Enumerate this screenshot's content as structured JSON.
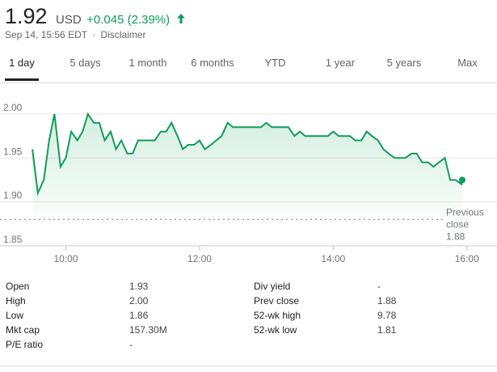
{
  "quote": {
    "price": "1.92",
    "currency": "USD",
    "change": "+0.045 (2.39%)",
    "change_color": "#0f9d58",
    "direction_icon": "up-arrow-icon",
    "timestamp": "Sep 14, 15:56 EDT",
    "separator": "·",
    "disclaimer": "Disclaimer"
  },
  "tabs": [
    {
      "label": "1 day",
      "active": true
    },
    {
      "label": "5 days"
    },
    {
      "label": "1 month"
    },
    {
      "label": "6 months"
    },
    {
      "label": "YTD"
    },
    {
      "label": "1 year"
    },
    {
      "label": "5 years"
    },
    {
      "label": "Max"
    }
  ],
  "chart_data": {
    "type": "area",
    "line_color": "#0f9d58",
    "fill_color": "#e6f4ea",
    "ylim": [
      1.85,
      2.0
    ],
    "y_ticks": [
      "2.00",
      "1.95",
      "1.90",
      "1.85"
    ],
    "x_ticks": [
      "10:00",
      "12:00",
      "14:00",
      "16:00"
    ],
    "grid": true,
    "previous_close": {
      "value": 1.88,
      "label": "Previous close",
      "value_label": "1.88"
    },
    "series": [
      {
        "x": [
          9.5,
          9.58,
          9.67,
          9.75,
          9.83,
          9.92,
          10.0,
          10.08,
          10.17,
          10.25,
          10.33,
          10.42,
          10.5,
          10.58,
          10.67,
          10.75,
          10.83,
          10.92,
          11.0,
          11.08,
          11.17,
          11.25,
          11.33,
          11.42,
          11.5,
          11.58,
          11.67,
          11.75,
          11.83,
          11.92,
          12.0,
          12.08,
          12.17,
          12.25,
          12.33,
          12.42,
          12.5,
          12.58,
          12.67,
          12.75,
          12.83,
          12.92,
          13.0,
          13.08,
          13.17,
          13.25,
          13.33,
          13.42,
          13.5,
          13.58,
          13.67,
          13.75,
          13.83,
          13.92,
          14.0,
          14.08,
          14.17,
          14.25,
          14.33,
          14.42,
          14.5,
          14.58,
          14.67,
          14.75,
          14.83,
          14.92,
          15.0,
          15.08,
          15.17,
          15.25,
          15.33,
          15.42,
          15.5,
          15.58,
          15.67,
          15.75,
          15.83,
          15.92,
          15.93
        ],
        "y": [
          1.96,
          1.91,
          1.925,
          1.97,
          2.0,
          1.94,
          1.95,
          1.98,
          1.97,
          1.98,
          2.0,
          1.99,
          1.99,
          1.97,
          1.98,
          1.96,
          1.97,
          1.955,
          1.955,
          1.97,
          1.97,
          1.97,
          1.97,
          1.98,
          1.98,
          1.99,
          1.975,
          1.96,
          1.965,
          1.965,
          1.97,
          1.96,
          1.965,
          1.97,
          1.975,
          1.99,
          1.985,
          1.985,
          1.985,
          1.985,
          1.985,
          1.985,
          1.99,
          1.985,
          1.985,
          1.985,
          1.985,
          1.975,
          1.98,
          1.975,
          1.975,
          1.975,
          1.975,
          1.975,
          1.98,
          1.975,
          1.975,
          1.975,
          1.97,
          1.97,
          1.98,
          1.975,
          1.97,
          1.96,
          1.955,
          1.95,
          1.95,
          1.95,
          1.955,
          1.955,
          1.945,
          1.945,
          1.94,
          1.945,
          1.95,
          1.925,
          1.925,
          1.92,
          1.925
        ]
      }
    ],
    "xlim": [
      9.45,
      16.45
    ]
  },
  "stats": {
    "left": [
      {
        "label": "Open",
        "value": "1.93"
      },
      {
        "label": "High",
        "value": "2.00"
      },
      {
        "label": "Low",
        "value": "1.86"
      },
      {
        "label": "Mkt cap",
        "value": "157.30M"
      },
      {
        "label": "P/E ratio",
        "value": "-"
      }
    ],
    "right": [
      {
        "label": "Div yield",
        "value": "-"
      },
      {
        "label": "Prev close",
        "value": "1.88"
      },
      {
        "label": "52-wk high",
        "value": "9.78"
      },
      {
        "label": "52-wk low",
        "value": "1.81"
      }
    ]
  }
}
